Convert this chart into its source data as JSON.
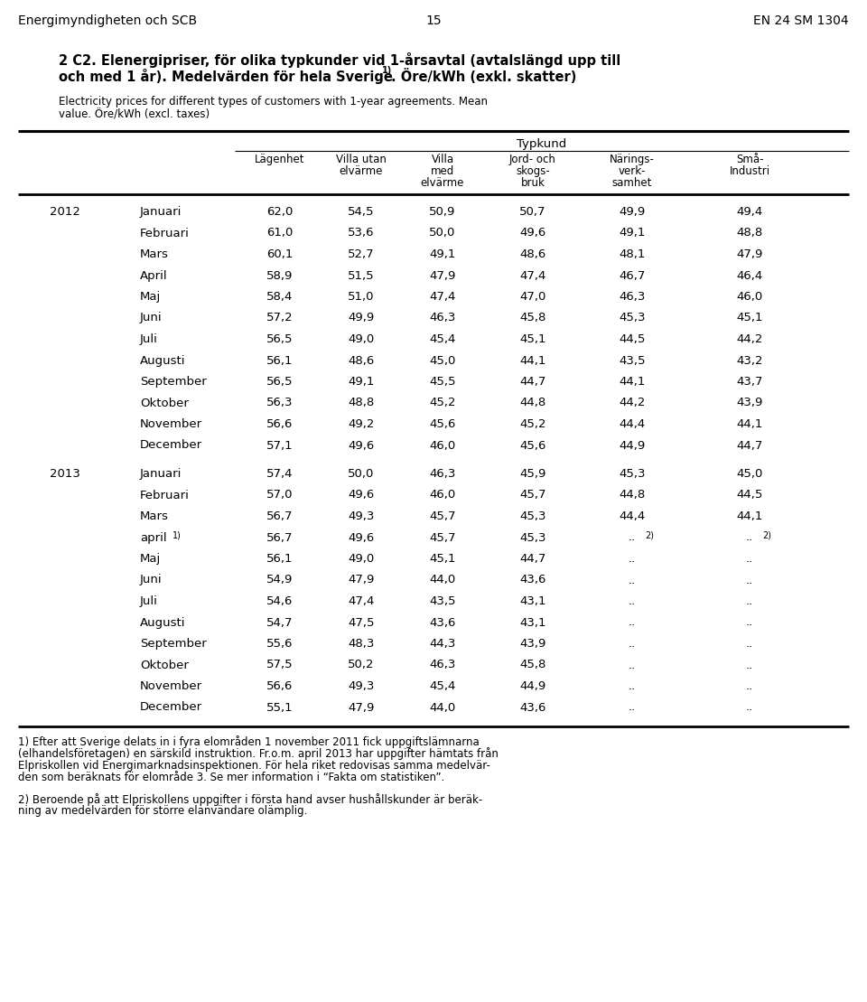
{
  "header_left": "Energimyndigheten och SCB",
  "header_center": "15",
  "header_right": "EN 24 SM 1304",
  "months_2012": [
    "Januari",
    "Februari",
    "Mars",
    "April",
    "Maj",
    "Juni",
    "Juli",
    "Augusti",
    "September",
    "Oktober",
    "November",
    "December"
  ],
  "months_2013": [
    "Januari",
    "Februari",
    "Mars",
    "april",
    "Maj",
    "Juni",
    "Juli",
    "Augusti",
    "September",
    "Oktober",
    "November",
    "December"
  ],
  "data_2012": [
    [
      "62,0",
      "54,5",
      "50,9",
      "50,7",
      "49,9",
      "49,4"
    ],
    [
      "61,0",
      "53,6",
      "50,0",
      "49,6",
      "49,1",
      "48,8"
    ],
    [
      "60,1",
      "52,7",
      "49,1",
      "48,6",
      "48,1",
      "47,9"
    ],
    [
      "58,9",
      "51,5",
      "47,9",
      "47,4",
      "46,7",
      "46,4"
    ],
    [
      "58,4",
      "51,0",
      "47,4",
      "47,0",
      "46,3",
      "46,0"
    ],
    [
      "57,2",
      "49,9",
      "46,3",
      "45,8",
      "45,3",
      "45,1"
    ],
    [
      "56,5",
      "49,0",
      "45,4",
      "45,1",
      "44,5",
      "44,2"
    ],
    [
      "56,1",
      "48,6",
      "45,0",
      "44,1",
      "43,5",
      "43,2"
    ],
    [
      "56,5",
      "49,1",
      "45,5",
      "44,7",
      "44,1",
      "43,7"
    ],
    [
      "56,3",
      "48,8",
      "45,2",
      "44,8",
      "44,2",
      "43,9"
    ],
    [
      "56,6",
      "49,2",
      "45,6",
      "45,2",
      "44,4",
      "44,1"
    ],
    [
      "57,1",
      "49,6",
      "46,0",
      "45,6",
      "44,9",
      "44,7"
    ]
  ],
  "data_2013": [
    [
      "57,4",
      "50,0",
      "46,3",
      "45,9",
      "45,3",
      "45,0"
    ],
    [
      "57,0",
      "49,6",
      "46,0",
      "45,7",
      "44,8",
      "44,5"
    ],
    [
      "56,7",
      "49,3",
      "45,7",
      "45,3",
      "44,4",
      "44,1"
    ],
    [
      "56,7",
      "49,6",
      "45,7",
      "45,3",
      "..",
      ".."
    ],
    [
      "56,1",
      "49,0",
      "45,1",
      "44,7",
      "..",
      ".."
    ],
    [
      "54,9",
      "47,9",
      "44,0",
      "43,6",
      "..",
      ".."
    ],
    [
      "54,6",
      "47,4",
      "43,5",
      "43,1",
      "..",
      ".."
    ],
    [
      "54,7",
      "47,5",
      "43,6",
      "43,1",
      "..",
      ".."
    ],
    [
      "55,6",
      "48,3",
      "44,3",
      "43,9",
      "..",
      ".."
    ],
    [
      "57,5",
      "50,2",
      "46,3",
      "45,8",
      "..",
      ".."
    ],
    [
      "56,6",
      "49,3",
      "45,4",
      "44,9",
      "..",
      ".."
    ],
    [
      "55,1",
      "47,9",
      "44,0",
      "43,6",
      "..",
      ".."
    ]
  ],
  "april_superscript": true,
  "april_row_idx": 3,
  "dotdot_superscript_row": 3,
  "col_headers_line1": [
    "Lägenhet",
    "Villa utan",
    "Villa",
    "Jord- och",
    "Närings-",
    "Små-"
  ],
  "col_headers_line2": [
    "",
    "elvärme",
    "med",
    "skogs-",
    "verk-",
    "Industri"
  ],
  "col_headers_line3": [
    "",
    "",
    "elvärme",
    "bruk",
    "samhet",
    ""
  ],
  "footnote1_line1": "1) Efter att Sverige delats in i fyra elområden 1 november 2011 fick uppgiftslämnarna",
  "footnote1_line2": "(elhandelsföretagen) en särskild instruktion. Fr.o.m. april 2013 har uppgifter hämtats från",
  "footnote1_line3": "Elpriskollen vid Energimarknadsinspektionen. För hela riket redovisas samma medelvär-",
  "footnote1_line4": "den som beräknats för elområde 3. Se mer information i “Fakta om statistiken”.",
  "footnote2_line1": "2) Beroende på att Elpriskollens uppgifter i första hand avser hushållskunder är beräk-",
  "footnote2_line2": "ning av medelvärden för större elanvändare olämplig."
}
